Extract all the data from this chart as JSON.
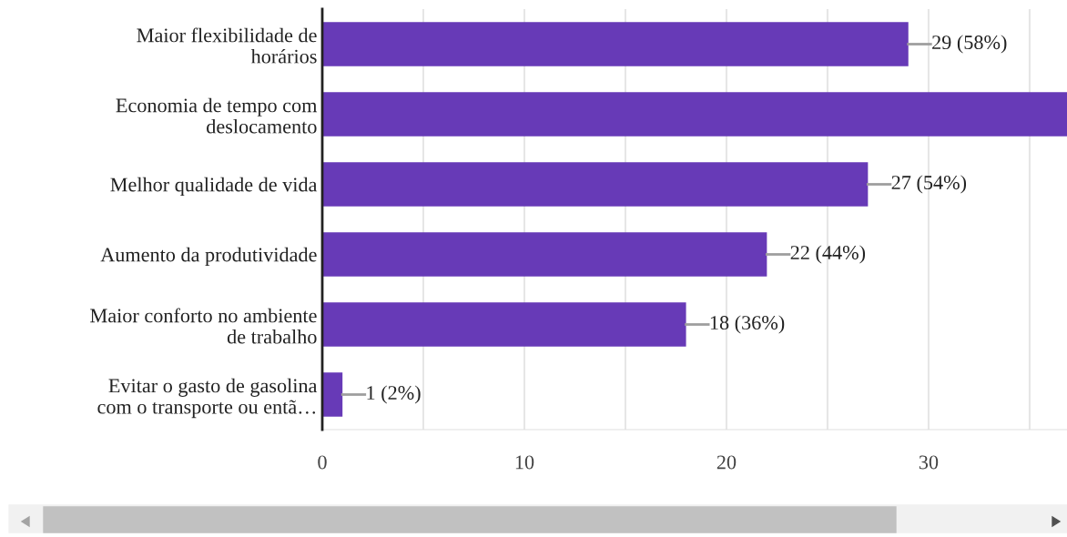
{
  "chart_data": {
    "type": "bar",
    "orientation": "horizontal",
    "categories": [
      "Maior flexibilidade de\nhorários",
      "Economia de tempo com\ndeslocamento",
      "Melhor qualidade de vida",
      "Aumento da produtividade",
      "Maior conforto no ambiente\nde trabalho",
      "Evitar o gasto de gasolina\ncom o transporte ou entã…"
    ],
    "values": [
      29,
      36.85,
      27,
      22,
      18,
      1
    ],
    "value_labels": [
      "29 (58%)",
      null,
      "27 (54%)",
      "22 (44%)",
      "18 (36%)",
      "1 (2%)"
    ],
    "color": "#673ab7",
    "xlim": [
      0,
      36.85
    ],
    "xticks": [
      0,
      {
        "value": 5,
        "label": null
      },
      10,
      {
        "value": 15,
        "label": null
      },
      20,
      {
        "value": 25,
        "label": null
      },
      30,
      {
        "value": 35,
        "label": null
      }
    ],
    "grid": "x"
  }
}
